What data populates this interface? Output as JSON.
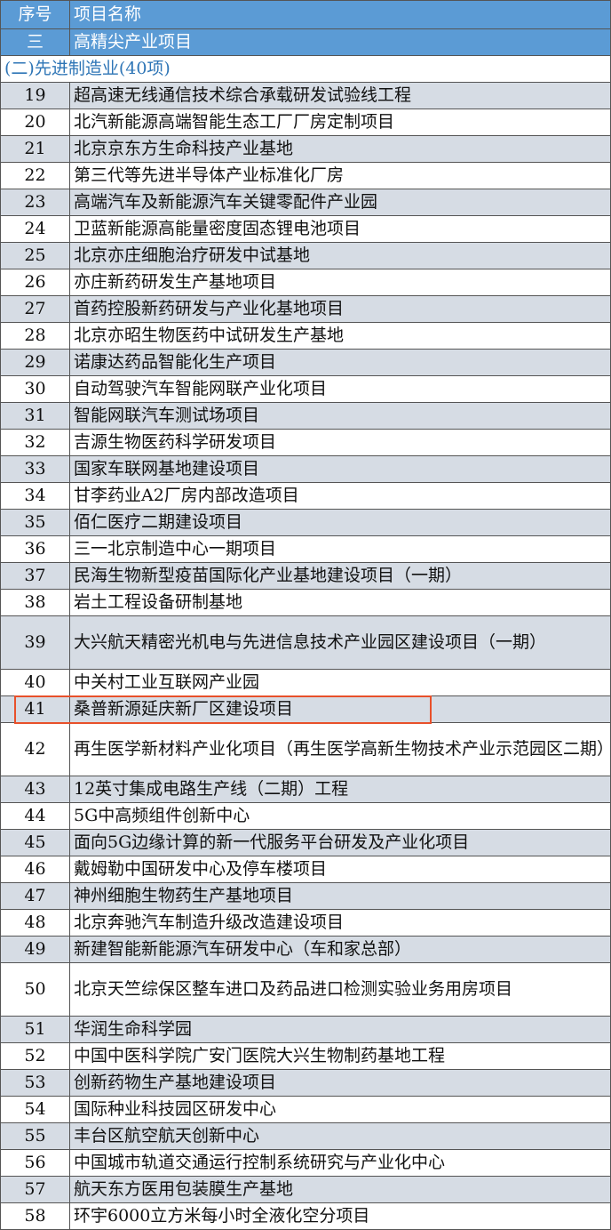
{
  "header": {
    "col_no": "序号",
    "col_name": "项目名称"
  },
  "category": {
    "no": "三",
    "name": "高精尖产业项目"
  },
  "section": "(二)先进制造业(40项)",
  "highlight_color": "#e8502a",
  "highlighted_row": "41",
  "rows": [
    {
      "no": "19",
      "name": "超高速无线通信技术综合承载研发试验线工程"
    },
    {
      "no": "20",
      "name": "北汽新能源高端智能生态工厂厂房定制项目"
    },
    {
      "no": "21",
      "name": "北京京东方生命科技产业基地"
    },
    {
      "no": "22",
      "name": "第三代等先进半导体产业标准化厂房"
    },
    {
      "no": "23",
      "name": "高端汽车及新能源汽车关键零配件产业园"
    },
    {
      "no": "24",
      "name": "卫蓝新能源高能量密度固态锂电池项目"
    },
    {
      "no": "25",
      "name": "北京亦庄细胞治疗研发中试基地"
    },
    {
      "no": "26",
      "name": "亦庄新药研发生产基地项目"
    },
    {
      "no": "27",
      "name": "首药控股新药研发与产业化基地项目"
    },
    {
      "no": "28",
      "name": "北京亦昭生物医药中试研发生产基地"
    },
    {
      "no": "29",
      "name": "诺康达药品智能化生产项目"
    },
    {
      "no": "30",
      "name": "自动驾驶汽车智能网联产业化项目"
    },
    {
      "no": "31",
      "name": "智能网联汽车测试场项目"
    },
    {
      "no": "32",
      "name": "吉源生物医药科学研发项目"
    },
    {
      "no": "33",
      "name": "国家车联网基地建设项目"
    },
    {
      "no": "34",
      "name": "甘李药业A2厂房内部改造项目"
    },
    {
      "no": "35",
      "name": "佰仁医疗二期建设项目"
    },
    {
      "no": "36",
      "name": "三一北京制造中心一期项目"
    },
    {
      "no": "37",
      "name": "民海生物新型疫苗国际化产业基地建设项目（一期）"
    },
    {
      "no": "38",
      "name": "岩土工程设备研制基地"
    },
    {
      "no": "39",
      "name": "大兴航天精密光机电与先进信息技术产业园区建设项目（一期）"
    },
    {
      "no": "40",
      "name": "中关村工业互联网产业园"
    },
    {
      "no": "41",
      "name": "桑普新源延庆新厂区建设项目"
    },
    {
      "no": "42",
      "name": "再生医学新材料产业化项目（再生医学高新生物技术产业示范园区二期）"
    },
    {
      "no": "43",
      "name": "12英寸集成电路生产线（二期）工程"
    },
    {
      "no": "44",
      "name": "5G中高频组件创新中心"
    },
    {
      "no": "45",
      "name": "面向5G边缘计算的新一代服务平台研发及产业化项目"
    },
    {
      "no": "46",
      "name": "戴姆勒中国研发中心及停车楼项目"
    },
    {
      "no": "47",
      "name": "神州细胞生物药生产基地项目"
    },
    {
      "no": "48",
      "name": "北京奔驰汽车制造升级改造建设项目"
    },
    {
      "no": "49",
      "name": "新建智能新能源汽车研发中心（车和家总部）"
    },
    {
      "no": "50",
      "name": "北京天竺综保区整车进口及药品进口检测实验业务用房项目"
    },
    {
      "no": "51",
      "name": "华润生命科学园"
    },
    {
      "no": "52",
      "name": "中国中医科学院广安门医院大兴生物制药基地工程"
    },
    {
      "no": "53",
      "name": "创新药物生产基地建设项目"
    },
    {
      "no": "54",
      "name": "国际种业科技园区研发中心"
    },
    {
      "no": "55",
      "name": "丰台区航空航天创新中心"
    },
    {
      "no": "56",
      "name": "中国城市轨道交通运行控制系统研究与产业化中心"
    },
    {
      "no": "57",
      "name": "航天东方医用包装膜生产基地"
    },
    {
      "no": "58",
      "name": "环宇6000立方米每小时全液化空分项目"
    }
  ]
}
